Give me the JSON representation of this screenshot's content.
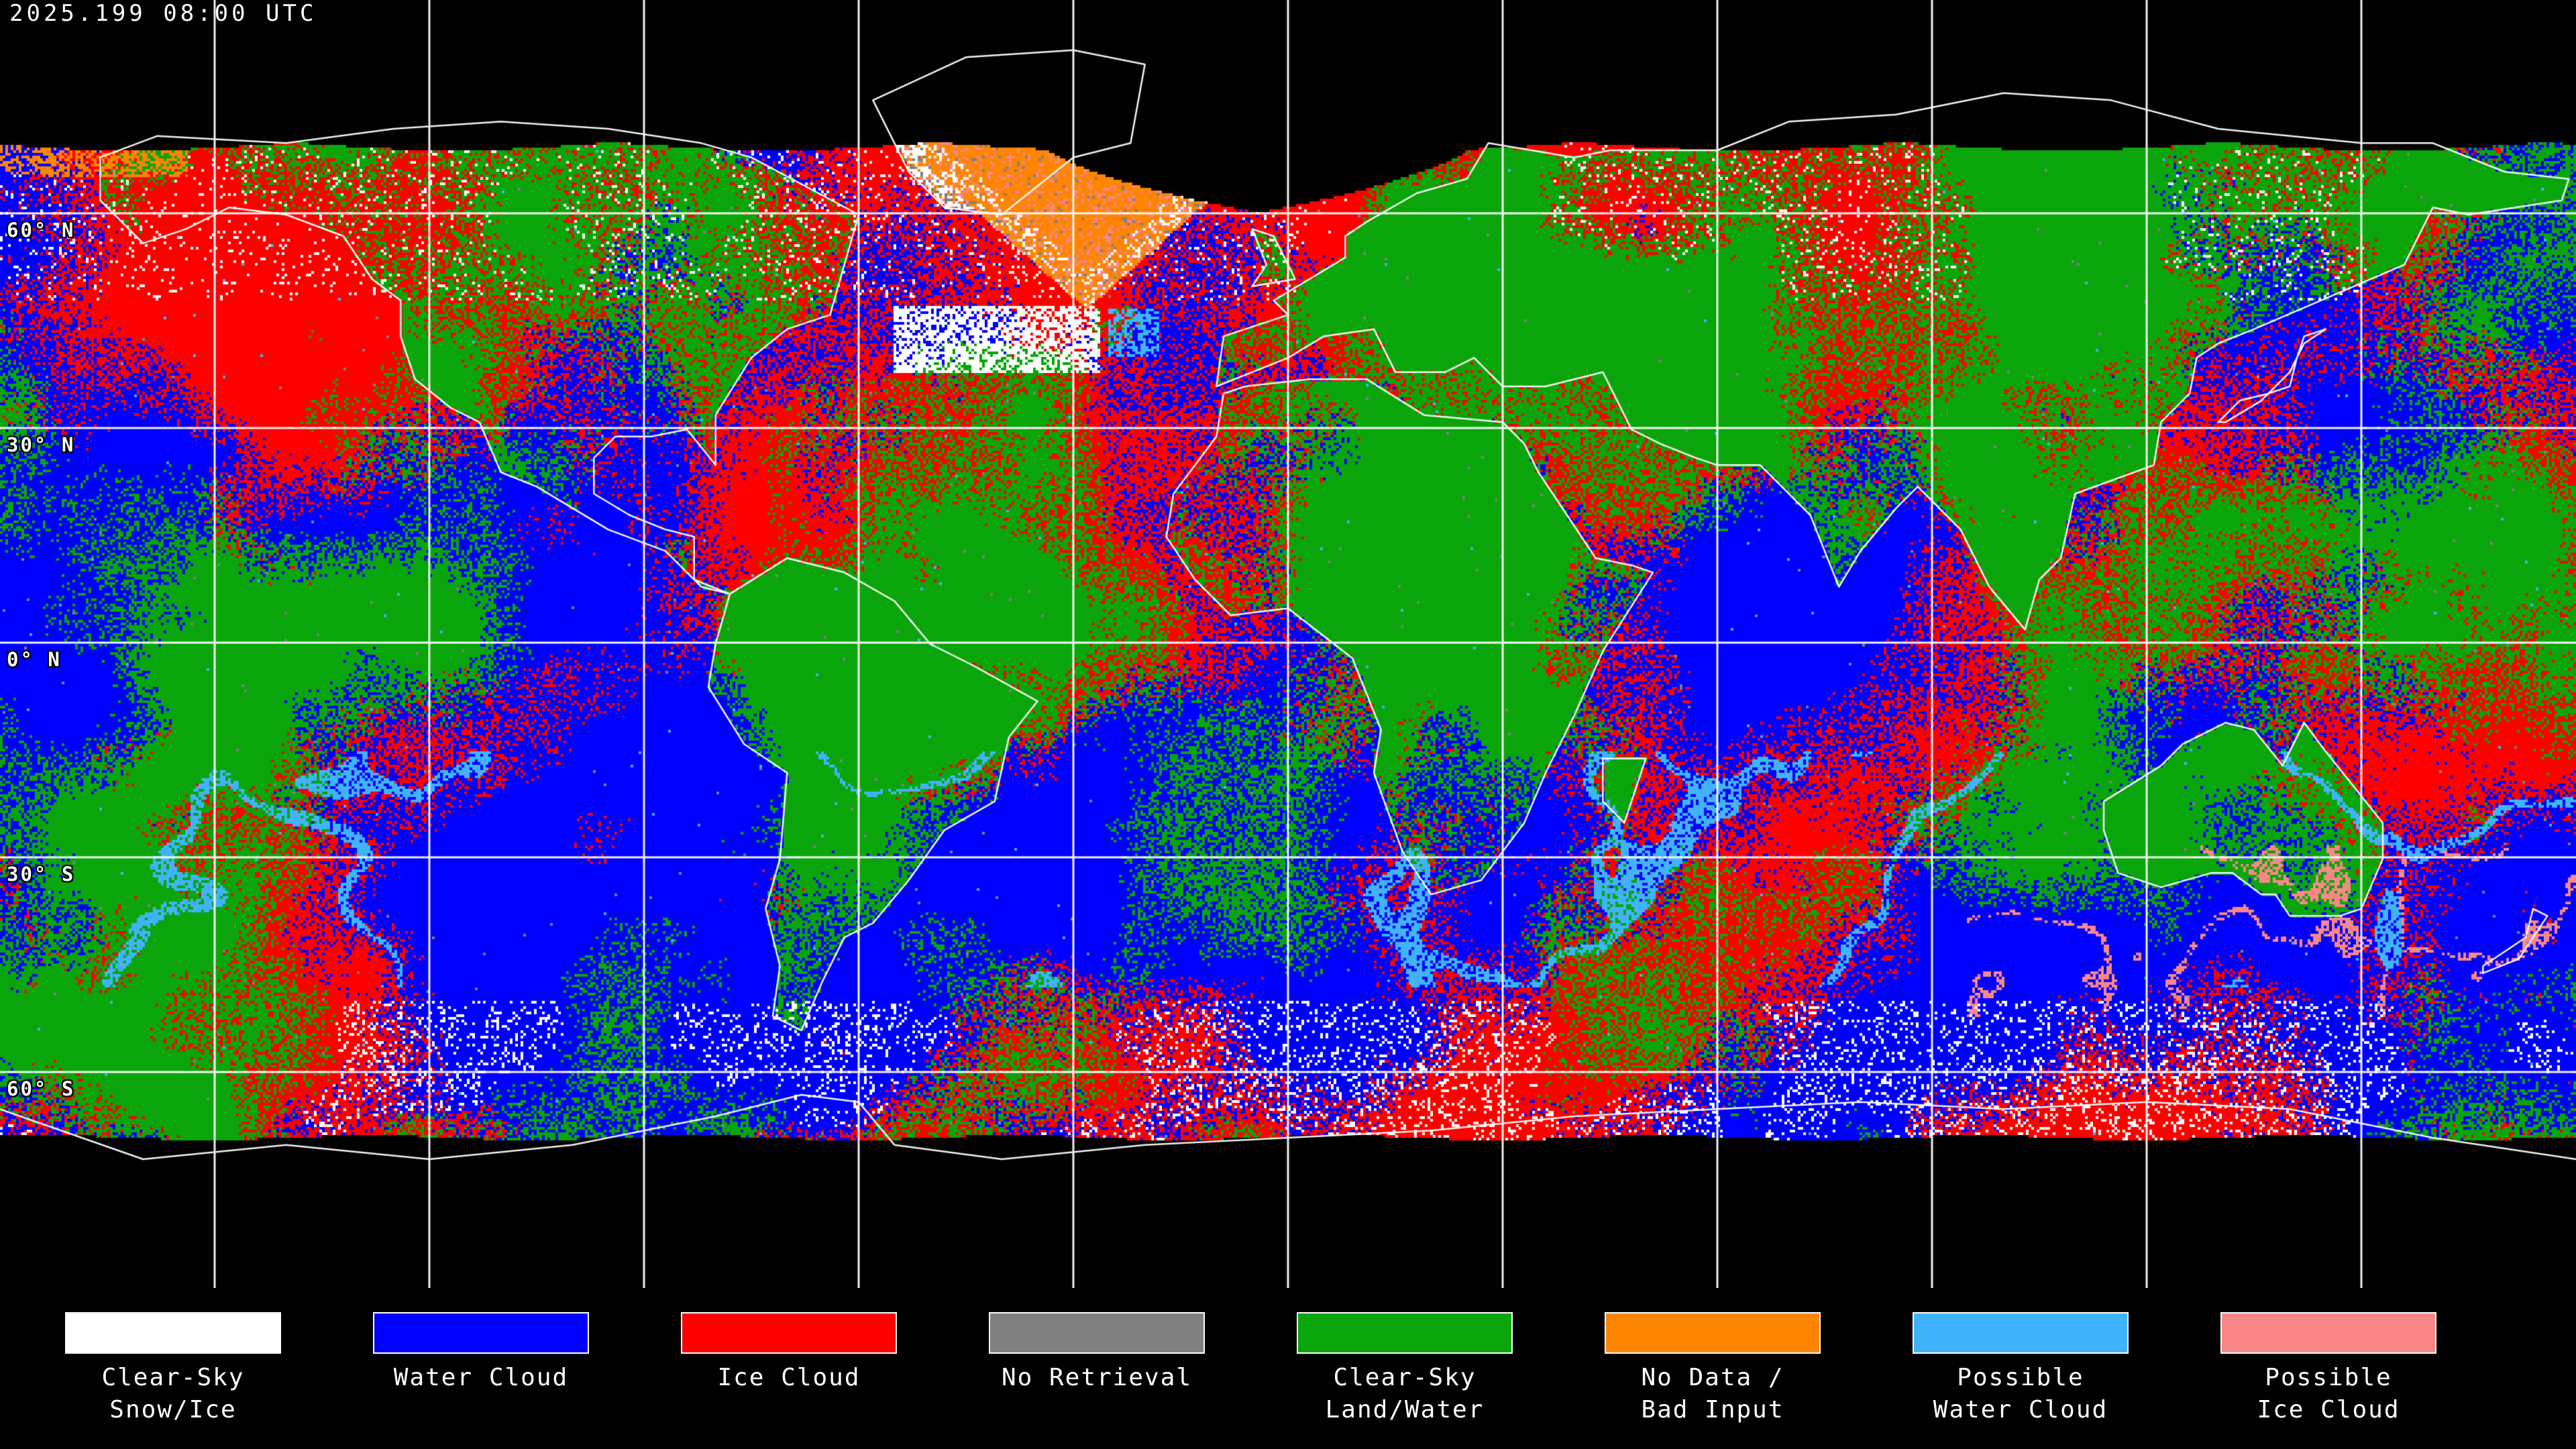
{
  "header": {
    "timestamp": "2025.199 08:00 UTC"
  },
  "map": {
    "latitude_labels": [
      {
        "label": "60° N",
        "lat": 60
      },
      {
        "label": "30° N",
        "lat": 30
      },
      {
        "label": "0° N",
        "lat": 0
      },
      {
        "label": "30° S",
        "lat": -30
      },
      {
        "label": "60° S",
        "lat": -60
      }
    ],
    "grid": {
      "lon_step_deg": 30,
      "lat_step_deg": 30
    },
    "palette": {
      "clear_sky_snow_ice": "#FFFFFF",
      "water_cloud": "#0000FF",
      "ice_cloud": "#FF0000",
      "no_retrieval": "#808080",
      "clear_sky_land_water": "#0AA50A",
      "no_data_bad_input": "#FF8400",
      "possible_water_cloud": "#41B3FC",
      "possible_ice_cloud": "#FA8787",
      "background": "#000000",
      "graticule": "#FFFFFF",
      "coastline": "#FFFFFF"
    }
  },
  "legend": {
    "items": [
      {
        "name": "clear-sky-snow-ice",
        "color": "#FFFFFF",
        "line1": "Clear-Sky",
        "line2": "Snow/Ice"
      },
      {
        "name": "water-cloud",
        "color": "#0000FF",
        "line1": "Water Cloud",
        "line2": ""
      },
      {
        "name": "ice-cloud",
        "color": "#FF0000",
        "line1": "Ice Cloud",
        "line2": ""
      },
      {
        "name": "no-retrieval",
        "color": "#808080",
        "line1": "No Retrieval",
        "line2": ""
      },
      {
        "name": "clear-sky-land-water",
        "color": "#0AA50A",
        "line1": "Clear-Sky",
        "line2": "Land/Water"
      },
      {
        "name": "no-data-bad-input",
        "color": "#FF8400",
        "line1": "No Data /",
        "line2": "Bad Input"
      },
      {
        "name": "possible-water-cloud",
        "color": "#41B3FC",
        "line1": "Possible",
        "line2": "Water Cloud"
      },
      {
        "name": "possible-ice-cloud",
        "color": "#FA8787",
        "line1": "Possible",
        "line2": "Ice Cloud"
      }
    ]
  }
}
